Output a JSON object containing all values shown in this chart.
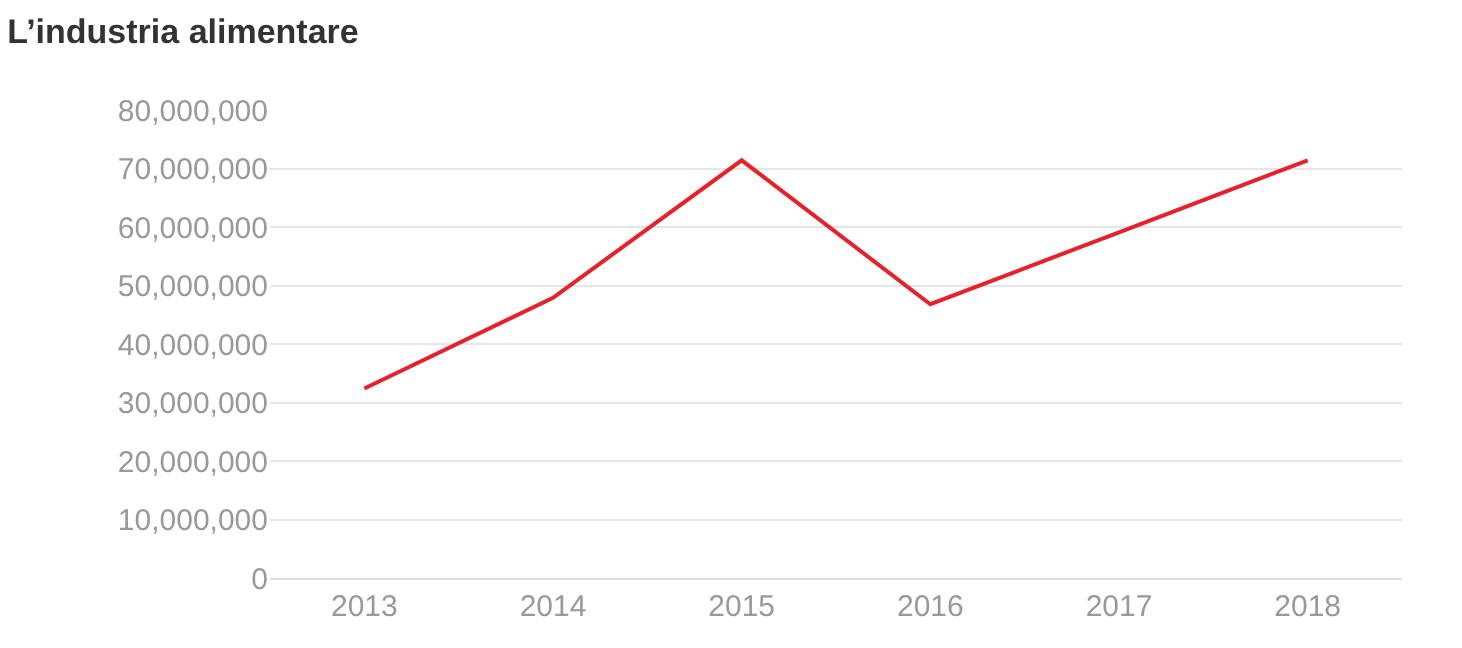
{
  "chart_data": {
    "type": "line",
    "title": "L’industria alimentare",
    "categories": [
      "2013",
      "2014",
      "2015",
      "2016",
      "2017",
      "2018"
    ],
    "series": [
      {
        "color": "#e8202a",
        "values": [
          32400000,
          47900000,
          71400000,
          46800000,
          59100000,
          71400000
        ]
      }
    ],
    "ylim": [
      0,
      80000000
    ],
    "yticks": [
      {
        "value": 0,
        "label": "0"
      },
      {
        "value": 10000000,
        "label": "10,000,000"
      },
      {
        "value": 20000000,
        "label": "20,000,000"
      },
      {
        "value": 30000000,
        "label": "30,000,000"
      },
      {
        "value": 40000000,
        "label": "40,000,000"
      },
      {
        "value": 50000000,
        "label": "50,000,000"
      },
      {
        "value": 60000000,
        "label": "60,000,000"
      },
      {
        "value": 70000000,
        "label": "70,000,000"
      },
      {
        "value": 80000000,
        "label": "80,000,000"
      }
    ],
    "grid": "y",
    "marker": "none"
  }
}
